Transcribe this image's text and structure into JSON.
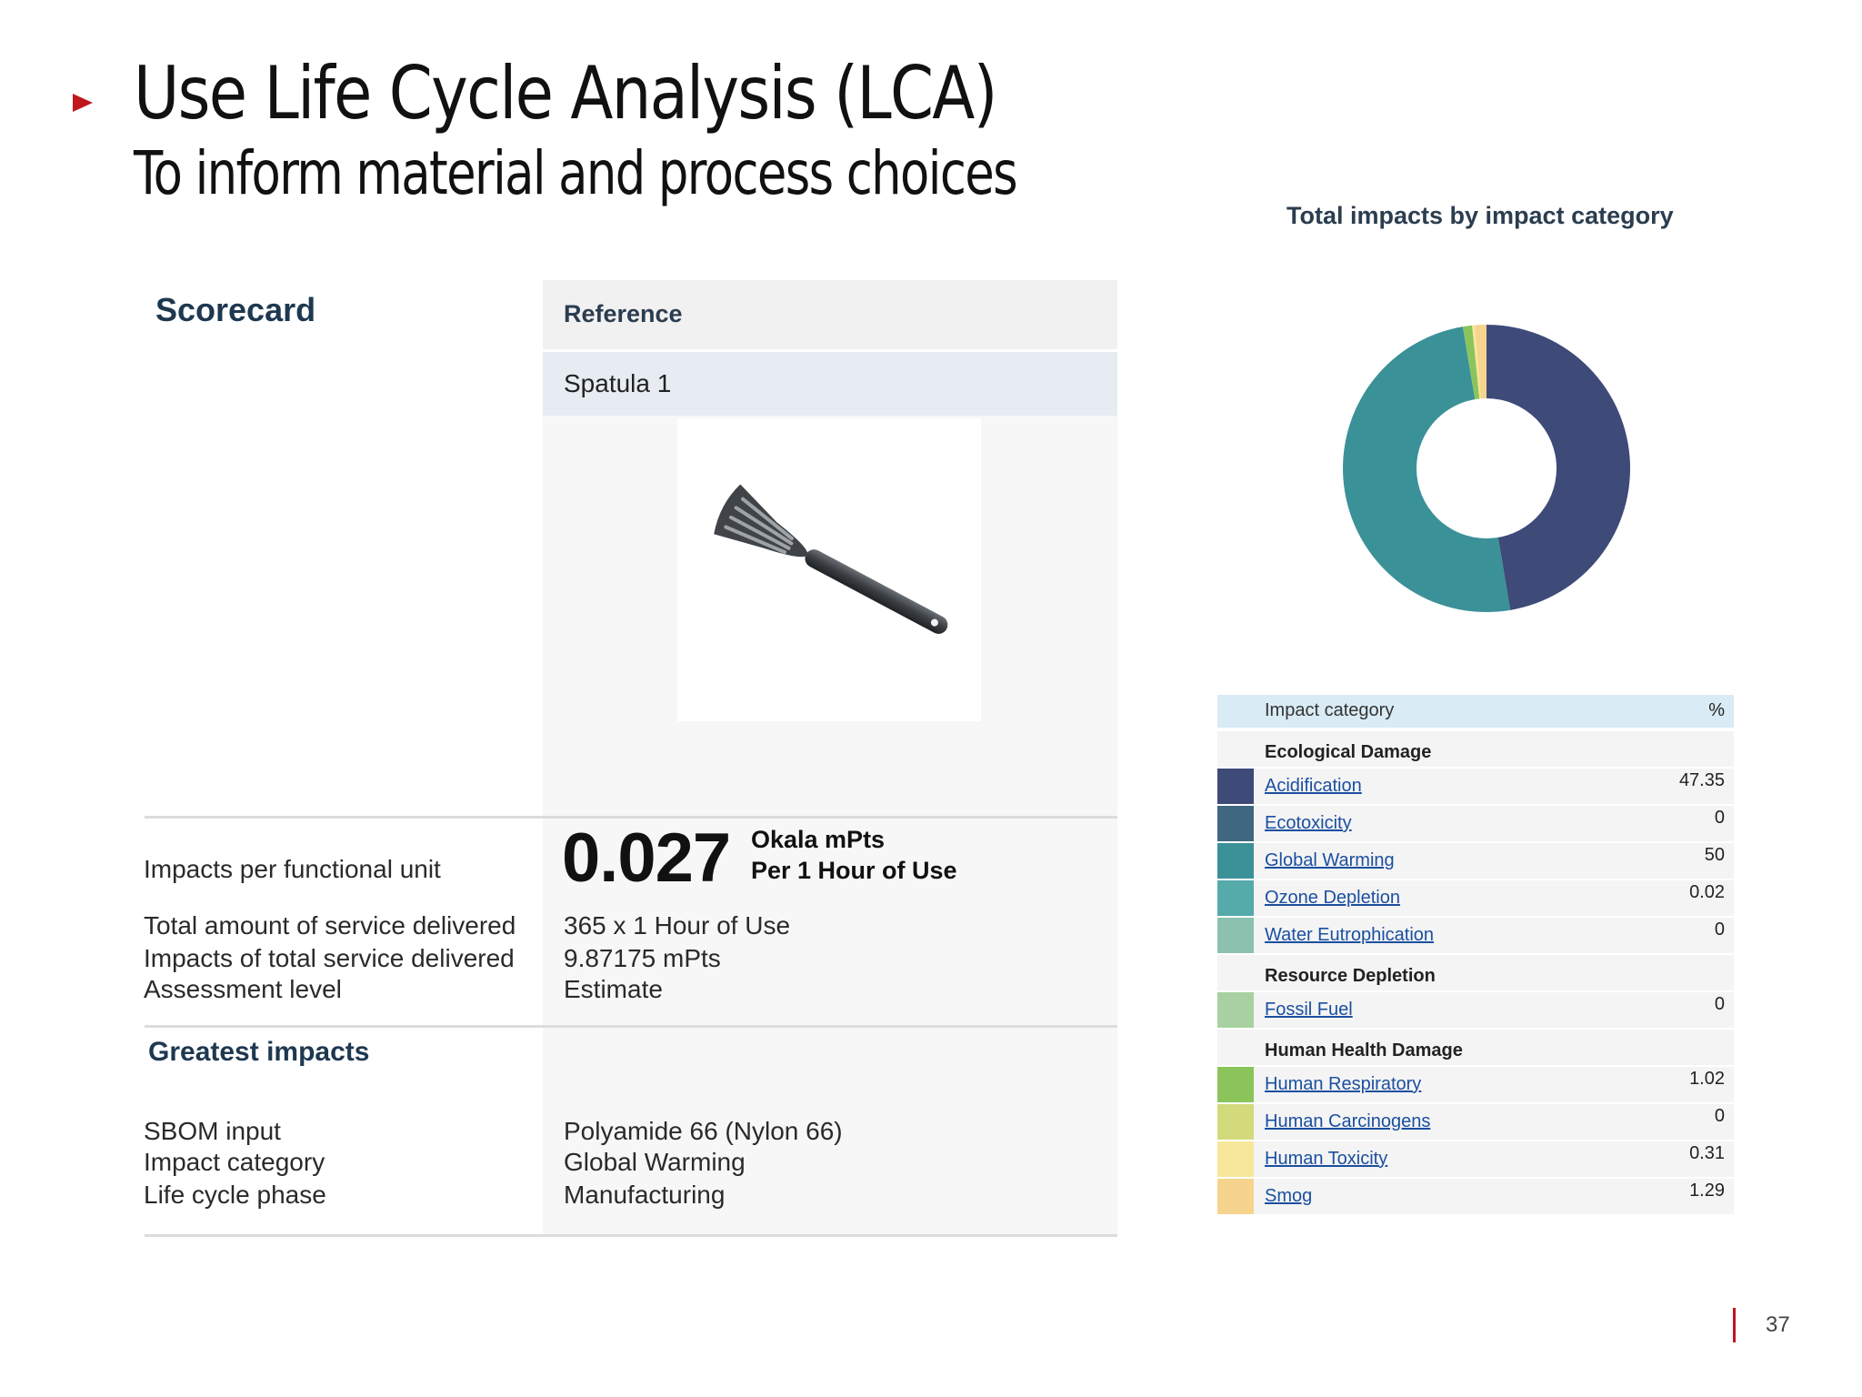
{
  "slide": {
    "title": "Use Life Cycle Analysis (LCA)",
    "subtitle": "To inform material and process choices",
    "page_number": "37",
    "accent_color": "#c0161d"
  },
  "scorecard": {
    "heading": "Scorecard",
    "reference_label": "Reference",
    "product_name": "Spatula 1",
    "product_image": "spatula-image",
    "impacts_per_unit_label": "Impacts per functional unit",
    "score": "0.027",
    "score_unit": "Okala mPts",
    "score_per": "Per 1 Hour of Use",
    "rows": [
      {
        "label": "Total amount of service delivered",
        "value": "365 x 1 Hour of Use"
      },
      {
        "label": "Impacts of total service delivered",
        "value": "9.87175 mPts"
      },
      {
        "label": "Assessment level",
        "value": "Estimate"
      }
    ],
    "greatest_heading": "Greatest impacts",
    "greatest_rows": [
      {
        "label": "SBOM input",
        "value": "Polyamide 66 (Nylon 66)"
      },
      {
        "label": "Impact category",
        "value": "Global Warming"
      },
      {
        "label": "Life cycle phase",
        "value": "Manufacturing"
      }
    ]
  },
  "impact_panel": {
    "title": "Total impacts by impact category",
    "header_category": "Impact category",
    "header_percent": "%",
    "groups": [
      {
        "name": "Ecological Damage",
        "items": [
          {
            "name": "Acidification",
            "value": "47.35",
            "color": "#3e4a78"
          },
          {
            "name": "Ecotoxicity",
            "value": "0",
            "color": "#3f6880"
          },
          {
            "name": "Global Warming",
            "value": "50",
            "color": "#3b9198"
          },
          {
            "name": "Ozone Depletion",
            "value": "0.02",
            "color": "#55aaaa"
          },
          {
            "name": "Water Eutrophication",
            "value": "0",
            "color": "#8cc1b0"
          }
        ]
      },
      {
        "name": "Resource Depletion",
        "items": [
          {
            "name": "Fossil Fuel",
            "value": "0",
            "color": "#a7d1a0"
          }
        ]
      },
      {
        "name": "Human Health Damage",
        "items": [
          {
            "name": "Human Respiratory",
            "value": "1.02",
            "color": "#8bc45a"
          },
          {
            "name": "Human Carcinogens",
            "value": "0",
            "color": "#d3da7c"
          },
          {
            "name": "Human Toxicity",
            "value": "0.31",
            "color": "#f6e79a"
          },
          {
            "name": "Smog",
            "value": "1.29",
            "color": "#f6d48e"
          }
        ]
      }
    ]
  }
}
